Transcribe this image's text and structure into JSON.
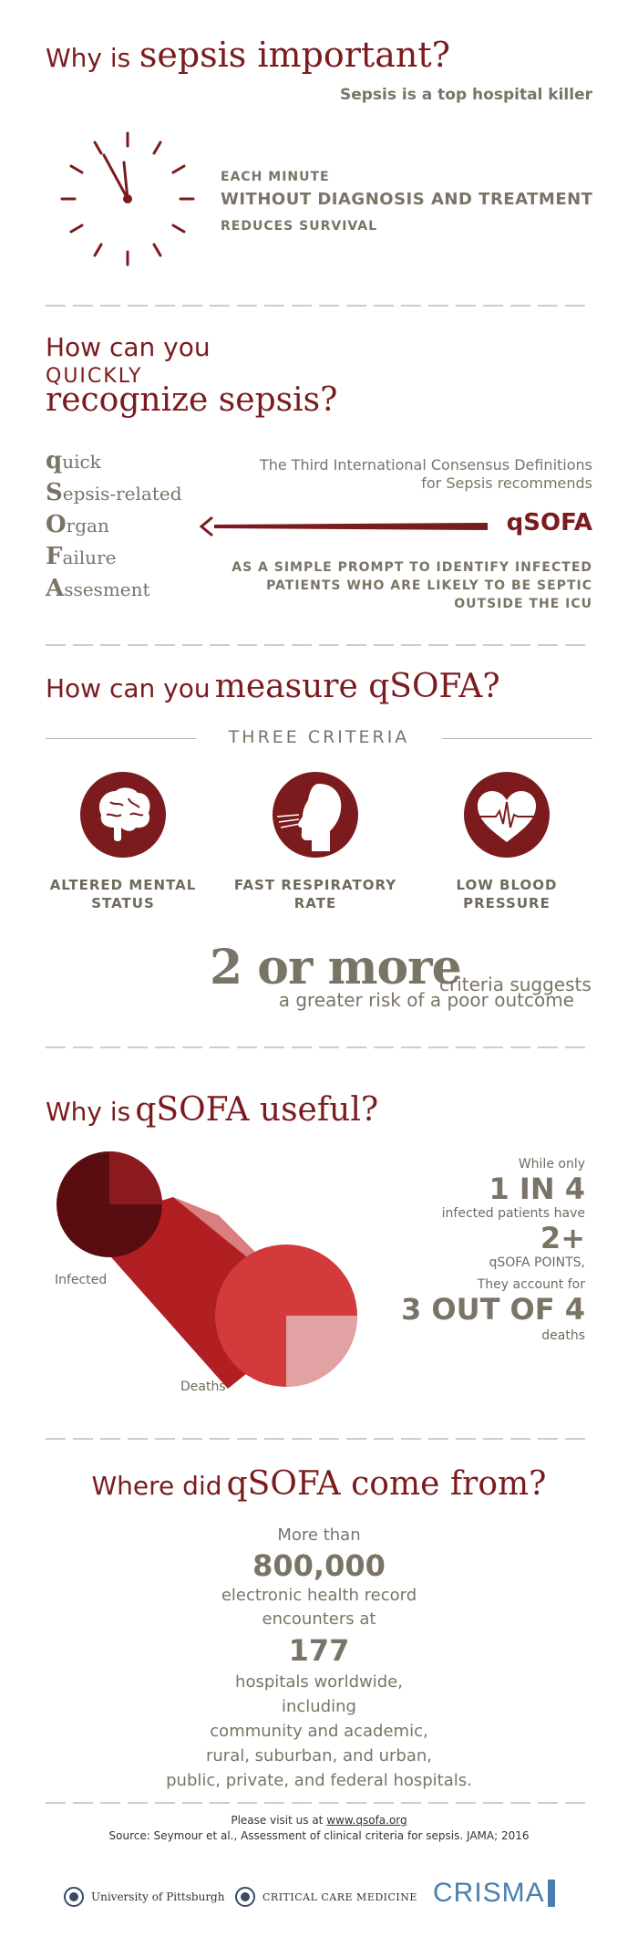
{
  "section1": {
    "title_prefix": "Why is",
    "title_main": "sepsis important?",
    "subtitle": "Sepsis is a top hospital killer",
    "line1": "EACH MINUTE",
    "line2": "WITHOUT DIAGNOSIS AND TREATMENT",
    "line3": "REDUCES SURVIVAL"
  },
  "section2": {
    "line1": "How can you",
    "line2": "QUICKLY",
    "line3": "recognize sepsis?",
    "acronym": [
      {
        "letter": "q",
        "rest": "uick"
      },
      {
        "letter": "S",
        "rest": "epsis-related"
      },
      {
        "letter": "O",
        "rest": "rgan"
      },
      {
        "letter": "F",
        "rest": "ailure"
      },
      {
        "letter": "A",
        "rest": "ssesment"
      }
    ],
    "consensus_line1": "The Third International Consensus Definitions",
    "consensus_line2": "for Sepsis recommends",
    "qsofa": "qSOFA",
    "prompt_line1": "AS A SIMPLE PROMPT TO IDENTIFY INFECTED",
    "prompt_line2": "PATIENTS WHO ARE LIKELY TO BE SEPTIC",
    "prompt_line3": "OUTSIDE THE ICU"
  },
  "section3": {
    "title_prefix": "How can you",
    "title_main": "measure qSOFA?",
    "criteria_header": "THREE CRITERIA",
    "criteria": [
      {
        "icon": "brain-icon",
        "line1": "ALTERED MENTAL",
        "line2": "STATUS"
      },
      {
        "icon": "breathing-head-icon",
        "line1": "FAST RESPIRATORY",
        "line2": "RATE"
      },
      {
        "icon": "heart-pulse-icon",
        "line1": "LOW BLOOD",
        "line2": "PRESSURE"
      }
    ],
    "big": "2 or more",
    "big_suffix": "criteria suggests",
    "big_line2": "a greater risk of a poor outcome"
  },
  "section4": {
    "title_prefix": "Why is",
    "title_main": "qSOFA useful?",
    "label_infected": "Infected",
    "label_deaths": "Deaths",
    "s1": "While only",
    "s2": "1 IN 4",
    "s3": "infected patients have",
    "s4": "2+",
    "s5": "qSOFA POINTS,",
    "s6": "They account for",
    "s7": "3 OUT OF 4",
    "s8": "deaths",
    "proportion_infected_2plus": 0.25,
    "proportion_deaths_2plus": 0.75
  },
  "section5": {
    "title_prefix": "Where did",
    "title_main": "qSOFA come from?",
    "l1": "More than",
    "l2": "800,000",
    "l3": "electronic health record",
    "l4": "encounters at",
    "l5": "177",
    "l6": "hospitals worldwide,",
    "l7": "including",
    "l8": "community and academic,",
    "l9": "rural, suburban, and urban,",
    "l10": "public, private, and federal hospitals."
  },
  "footer": {
    "visit": "Please visit us at",
    "link": "www.qsofa.org",
    "source": "Source: Seymour et al., Assessment of clinical criteria for sepsis. JAMA; 2016",
    "logo1": "University of Pittsburgh",
    "logo2": "CRITICAL CARE MEDICINE",
    "logo3": "CRISMA"
  },
  "colors": {
    "maroon": "#7b1b1e",
    "grey_text": "#7a7466",
    "red_light": "#d23a3c",
    "red_pale": "#e2a1a2"
  }
}
